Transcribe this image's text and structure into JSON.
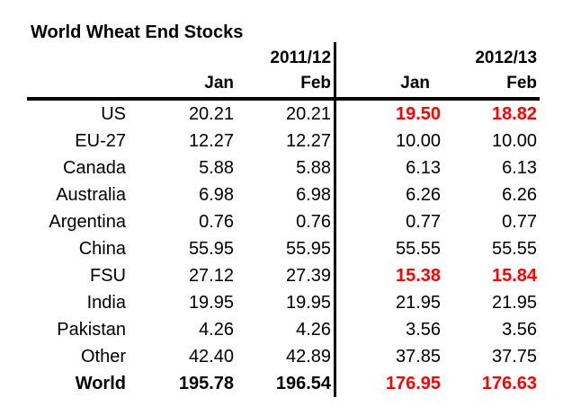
{
  "title": "World Wheat End Stocks",
  "colors": {
    "highlight_red": "#FF0000",
    "text": "#000000",
    "line": "#000000",
    "background": "#FFFFFF"
  },
  "chart_data": {
    "type": "table",
    "title": "World Wheat End Stocks",
    "column_groups": [
      "2011/12",
      "2012/13"
    ],
    "columns": [
      "Jan",
      "Feb",
      "Jan",
      "Feb"
    ],
    "rows": [
      {
        "label": "US",
        "values": [
          "20.21",
          "20.21",
          "19.50",
          "18.82"
        ],
        "highlight": [
          false,
          false,
          true,
          true
        ],
        "bold": false
      },
      {
        "label": "EU-27",
        "values": [
          "12.27",
          "12.27",
          "10.00",
          "10.00"
        ],
        "highlight": [
          false,
          false,
          false,
          false
        ],
        "bold": false
      },
      {
        "label": "Canada",
        "values": [
          "5.88",
          "5.88",
          "6.13",
          "6.13"
        ],
        "highlight": [
          false,
          false,
          false,
          false
        ],
        "bold": false
      },
      {
        "label": "Australia",
        "values": [
          "6.98",
          "6.98",
          "6.26",
          "6.26"
        ],
        "highlight": [
          false,
          false,
          false,
          false
        ],
        "bold": false
      },
      {
        "label": "Argentina",
        "values": [
          "0.76",
          "0.76",
          "0.77",
          "0.77"
        ],
        "highlight": [
          false,
          false,
          false,
          false
        ],
        "bold": false
      },
      {
        "label": "China",
        "values": [
          "55.95",
          "55.95",
          "55.55",
          "55.55"
        ],
        "highlight": [
          false,
          false,
          false,
          false
        ],
        "bold": false
      },
      {
        "label": "FSU",
        "values": [
          "27.12",
          "27.39",
          "15.38",
          "15.84"
        ],
        "highlight": [
          false,
          false,
          true,
          true
        ],
        "bold": false
      },
      {
        "label": "India",
        "values": [
          "19.95",
          "19.95",
          "21.95",
          "21.95"
        ],
        "highlight": [
          false,
          false,
          false,
          false
        ],
        "bold": false
      },
      {
        "label": "Pakistan",
        "values": [
          "4.26",
          "4.26",
          "3.56",
          "3.56"
        ],
        "highlight": [
          false,
          false,
          false,
          false
        ],
        "bold": false
      },
      {
        "label": "Other",
        "values": [
          "42.40",
          "42.89",
          "37.85",
          "37.75"
        ],
        "highlight": [
          false,
          false,
          false,
          false
        ],
        "bold": false
      },
      {
        "label": "World",
        "values": [
          "195.78",
          "196.54",
          "176.95",
          "176.63"
        ],
        "highlight": [
          false,
          false,
          true,
          true
        ],
        "bold": true
      }
    ]
  }
}
